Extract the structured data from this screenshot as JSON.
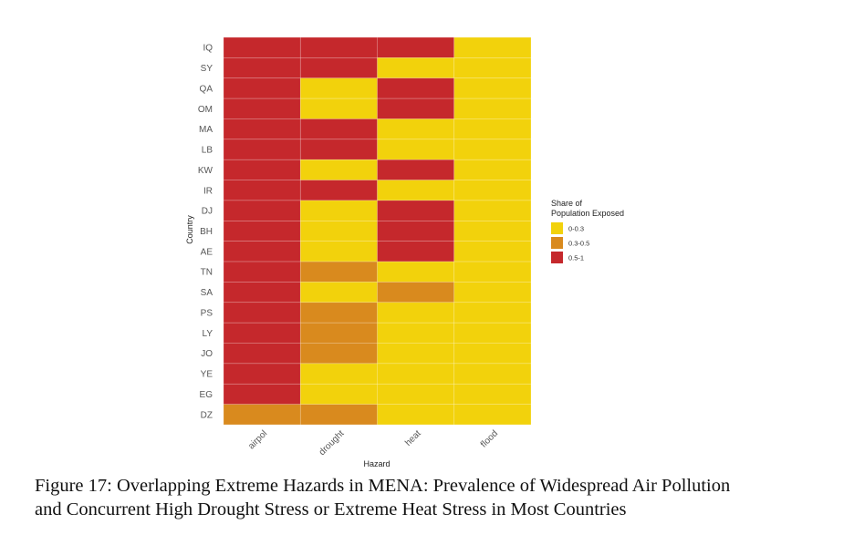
{
  "chart_data": {
    "type": "heatmap",
    "xlabel": "Hazard",
    "ylabel": "Country",
    "x_categories": [
      "airpol",
      "drought",
      "heat",
      "flood"
    ],
    "y_categories": [
      "IQ",
      "SY",
      "QA",
      "OM",
      "MA",
      "LB",
      "KW",
      "IR",
      "DJ",
      "BH",
      "AE",
      "TN",
      "SA",
      "PS",
      "LY",
      "JO",
      "YE",
      "EG",
      "DZ"
    ],
    "legend": {
      "title_line1": "Share of",
      "title_line2": "Population Exposed",
      "placement": "right",
      "bins": [
        {
          "label": "0-0.3",
          "color": "#F2D20C"
        },
        {
          "label": "0.3-0.5",
          "color": "#D98A1E"
        },
        {
          "label": "0.5-1",
          "color": "#C5282C"
        }
      ]
    },
    "values": [
      [
        "0.5-1",
        "0.5-1",
        "0.5-1",
        "0-0.3"
      ],
      [
        "0.5-1",
        "0.5-1",
        "0-0.3",
        "0-0.3"
      ],
      [
        "0.5-1",
        "0-0.3",
        "0.5-1",
        "0-0.3"
      ],
      [
        "0.5-1",
        "0-0.3",
        "0.5-1",
        "0-0.3"
      ],
      [
        "0.5-1",
        "0.5-1",
        "0-0.3",
        "0-0.3"
      ],
      [
        "0.5-1",
        "0.5-1",
        "0-0.3",
        "0-0.3"
      ],
      [
        "0.5-1",
        "0-0.3",
        "0.5-1",
        "0-0.3"
      ],
      [
        "0.5-1",
        "0.5-1",
        "0-0.3",
        "0-0.3"
      ],
      [
        "0.5-1",
        "0-0.3",
        "0.5-1",
        "0-0.3"
      ],
      [
        "0.5-1",
        "0-0.3",
        "0.5-1",
        "0-0.3"
      ],
      [
        "0.5-1",
        "0-0.3",
        "0.5-1",
        "0-0.3"
      ],
      [
        "0.5-1",
        "0.3-0.5",
        "0-0.3",
        "0-0.3"
      ],
      [
        "0.5-1",
        "0-0.3",
        "0.3-0.5",
        "0-0.3"
      ],
      [
        "0.5-1",
        "0.3-0.5",
        "0-0.3",
        "0-0.3"
      ],
      [
        "0.5-1",
        "0.3-0.5",
        "0-0.3",
        "0-0.3"
      ],
      [
        "0.5-1",
        "0.3-0.5",
        "0-0.3",
        "0-0.3"
      ],
      [
        "0.5-1",
        "0-0.3",
        "0-0.3",
        "0-0.3"
      ],
      [
        "0.5-1",
        "0-0.3",
        "0-0.3",
        "0-0.3"
      ],
      [
        "0.3-0.5",
        "0.3-0.5",
        "0-0.3",
        "0-0.3"
      ]
    ]
  },
  "caption": {
    "line1": "Figure 17:  Overlapping Extreme Hazards in MENA: Prevalence of Widespread Air Pollution",
    "line2": "and Concurrent High Drought Stress or Extreme Heat Stress in Most Countries"
  }
}
